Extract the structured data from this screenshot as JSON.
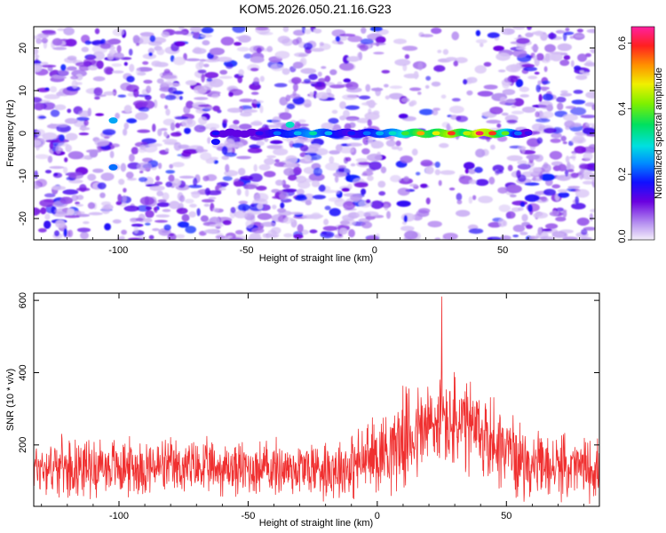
{
  "title": "KOM5.2026.050.21.16.G23",
  "chart_data": [
    {
      "type": "heatmap",
      "xlabel": "Height of straight line (km)",
      "ylabel": "Frequency (Hz)",
      "xlim": [
        -133,
        86
      ],
      "ylim": [
        -25,
        25
      ],
      "xticks": [
        -100,
        -50,
        0,
        50
      ],
      "xtick_labels": [
        "-100",
        "-50",
        "0",
        "50"
      ],
      "yticks": [
        -20,
        -10,
        0,
        10,
        20
      ],
      "ytick_labels": [
        "-20",
        "-10",
        "0",
        "10",
        "20"
      ],
      "colorbar": {
        "label": "Normalized spectral amplitude",
        "range": [
          0.0,
          0.65
        ],
        "ticks": [
          0.0,
          0.2,
          0.4,
          0.6
        ],
        "tick_labels": [
          "0.0",
          "0.2",
          "0.4",
          "0.6"
        ]
      },
      "ridge": {
        "frequency_hz": 0,
        "x_start": -62,
        "x_end": 60,
        "segments": [
          {
            "x": -62,
            "v": 0.17
          },
          {
            "x": -45,
            "v": 0.16
          },
          {
            "x": -38,
            "v": 0.22
          },
          {
            "x": -30,
            "v": 0.26
          },
          {
            "x": -24,
            "v": 0.32
          },
          {
            "x": -18,
            "v": 0.26
          },
          {
            "x": -9,
            "v": 0.18
          },
          {
            "x": -3,
            "v": 0.22
          },
          {
            "x": 2,
            "v": 0.26
          },
          {
            "x": 7,
            "v": 0.3
          },
          {
            "x": 12,
            "v": 0.38
          },
          {
            "x": 18,
            "v": 0.52
          },
          {
            "x": 24,
            "v": 0.47
          },
          {
            "x": 30,
            "v": 0.58
          },
          {
            "x": 36,
            "v": 0.45
          },
          {
            "x": 41,
            "v": 0.62
          },
          {
            "x": 46,
            "v": 0.58
          },
          {
            "x": 51,
            "v": 0.4
          },
          {
            "x": 56,
            "v": 0.22
          },
          {
            "x": 60,
            "v": 0.15
          }
        ],
        "blobs": [
          {
            "x": -102,
            "f": 3,
            "v": 0.25
          },
          {
            "x": -102,
            "f": -8,
            "v": 0.22
          },
          {
            "x": -62,
            "f": -2,
            "v": 0.17
          },
          {
            "x": -33,
            "f": 2,
            "v": 0.3
          }
        ]
      }
    },
    {
      "type": "line",
      "color": "#f03030",
      "xlabel": "Height of straight line (km)",
      "ylabel": "SNR (10 * v/v)",
      "xlim": [
        -133,
        86
      ],
      "ylim": [
        30,
        620
      ],
      "xticks": [
        -100,
        -50,
        0,
        50
      ],
      "xtick_labels": [
        "-100",
        "-50",
        "0",
        "50"
      ],
      "yticks": [
        200,
        400,
        600
      ],
      "ytick_labels": [
        "200",
        "400",
        "600"
      ],
      "envelope": {
        "x": [
          -133,
          -100,
          -60,
          -30,
          -10,
          0,
          10,
          20,
          25,
          30,
          40,
          50,
          55,
          60,
          86
        ],
        "mean": [
          140,
          140,
          135,
          135,
          140,
          175,
          215,
          250,
          265,
          255,
          230,
          190,
          160,
          140,
          135
        ],
        "amp": [
          90,
          95,
          90,
          95,
          110,
          130,
          160,
          175,
          180,
          170,
          160,
          140,
          120,
          105,
          100
        ]
      },
      "peak": {
        "x": 25,
        "y": 610
      }
    }
  ]
}
